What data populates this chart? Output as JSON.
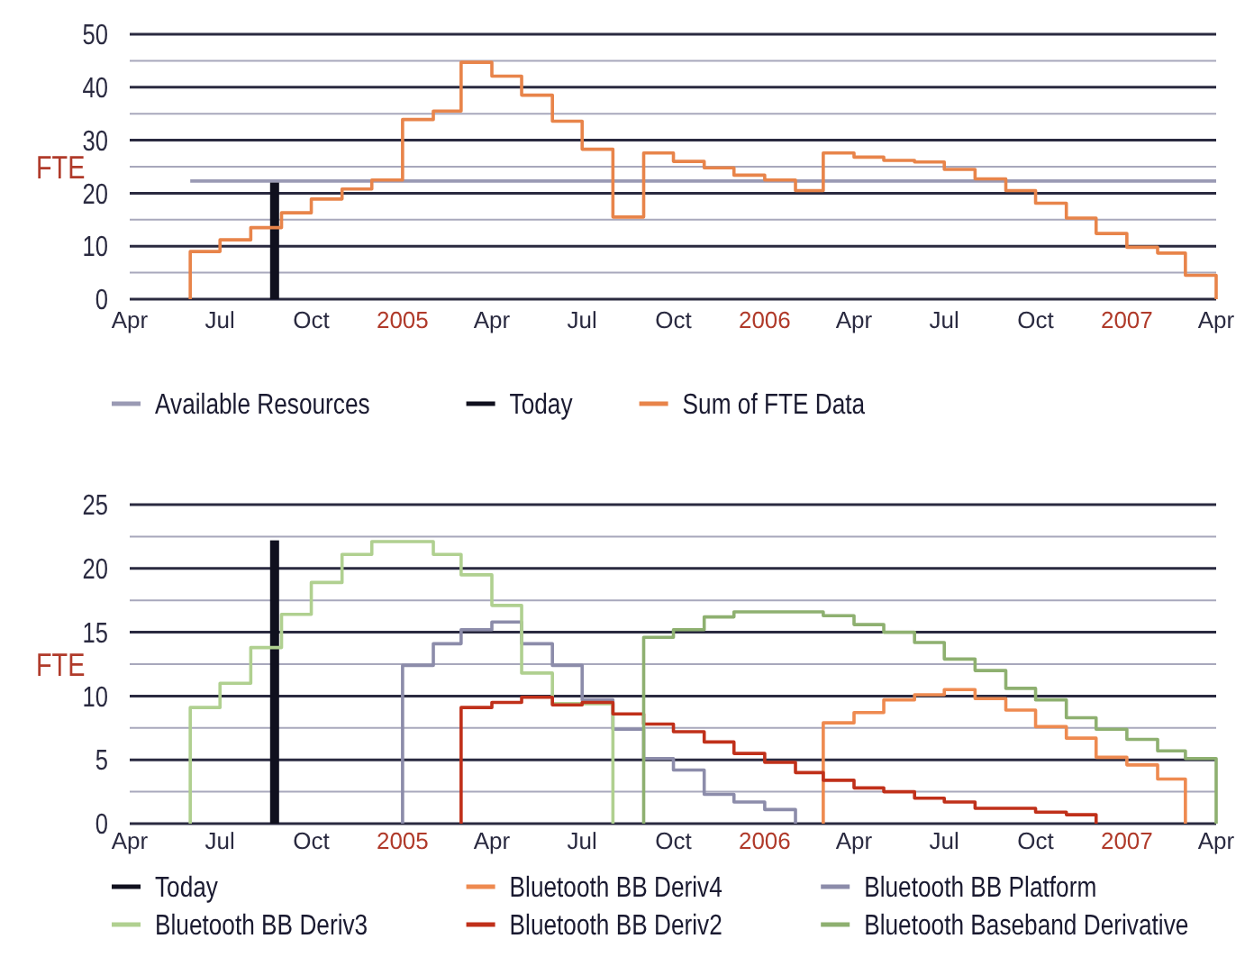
{
  "chart_data": [
    {
      "type": "step",
      "ylabel": "FTE",
      "xlim": [
        "2004-04",
        "2007-04"
      ],
      "xticks": [
        {
          "value": "2004-04",
          "label": "Apr"
        },
        {
          "value": "2004-07",
          "label": "Jul"
        },
        {
          "value": "2004-10",
          "label": "Oct"
        },
        {
          "value": "2005-01",
          "label": "2005"
        },
        {
          "value": "2005-04",
          "label": "Apr"
        },
        {
          "value": "2005-07",
          "label": "Jul"
        },
        {
          "value": "2005-10",
          "label": "Oct"
        },
        {
          "value": "2006-01",
          "label": "2006"
        },
        {
          "value": "2006-04",
          "label": "Apr"
        },
        {
          "value": "2006-07",
          "label": "Jul"
        },
        {
          "value": "2006-10",
          "label": "Oct"
        },
        {
          "value": "2007-01",
          "label": "2007"
        },
        {
          "value": "2007-04",
          "label": "Apr"
        }
      ],
      "ylim": [
        0,
        50
      ],
      "yticks": [
        0,
        {
          "value": 5,
          "label": null
        },
        10,
        {
          "value": 15,
          "label": null
        },
        20,
        {
          "value": 25,
          "label": null
        },
        30,
        {
          "value": 35,
          "label": null
        },
        40,
        {
          "value": 45,
          "label": null
        },
        50
      ],
      "grid": "y",
      "legend": "bottom",
      "series": [
        {
          "name": "Available Resources",
          "type": "line",
          "color": "#9a9ab4",
          "x": [
            "2004-06",
            "2007-04"
          ],
          "values": [
            22.3,
            22.3
          ]
        },
        {
          "name": "Today",
          "type": "bar",
          "color": "#10101e",
          "x": [
            "2004-08-25"
          ],
          "values": [
            22
          ]
        },
        {
          "name": "Sum of FTE Data",
          "color": "#e8844a",
          "x": [
            "2004-06",
            "2004-06",
            "2004-07",
            "2004-08",
            "2004-09",
            "2004-10",
            "2004-11",
            "2004-12",
            "2005-01",
            "2005-02",
            "2005-03",
            "2005-04",
            "2005-05",
            "2005-06",
            "2005-07",
            "2005-08",
            "2005-09",
            "2005-10",
            "2005-11",
            "2005-12",
            "2006-01",
            "2006-02",
            "2006-03",
            "2006-04",
            "2006-05",
            "2006-06",
            "2006-07",
            "2006-08",
            "2006-09",
            "2006-10",
            "2006-11",
            "2006-12",
            "2007-01",
            "2007-02",
            "2007-03",
            "2007-04"
          ],
          "values": [
            0,
            9,
            11.2,
            13.5,
            16.3,
            18.9,
            20.8,
            22.5,
            33.9,
            35.5,
            44.7,
            42.1,
            38.5,
            33.6,
            28.3,
            15.5,
            27.6,
            26,
            24.8,
            23.4,
            22.5,
            20.5,
            27.6,
            26.8,
            26.2,
            25.9,
            24.5,
            22.7,
            20.5,
            18.1,
            15.3,
            12.4,
            9.8,
            8.7,
            4.5,
            0
          ]
        }
      ]
    },
    {
      "type": "step",
      "ylabel": "FTE",
      "xlim": [
        "2004-04",
        "2007-04"
      ],
      "xticks": [
        {
          "value": "2004-04",
          "label": "Apr"
        },
        {
          "value": "2004-07",
          "label": "Jul"
        },
        {
          "value": "2004-10",
          "label": "Oct"
        },
        {
          "value": "2005-01",
          "label": "2005"
        },
        {
          "value": "2005-04",
          "label": "Apr"
        },
        {
          "value": "2005-07",
          "label": "Jul"
        },
        {
          "value": "2005-10",
          "label": "Oct"
        },
        {
          "value": "2006-01",
          "label": "2006"
        },
        {
          "value": "2006-04",
          "label": "Apr"
        },
        {
          "value": "2006-07",
          "label": "Jul"
        },
        {
          "value": "2006-10",
          "label": "Oct"
        },
        {
          "value": "2007-01",
          "label": "2007"
        },
        {
          "value": "2007-04",
          "label": "Apr"
        }
      ],
      "ylim": [
        0,
        25
      ],
      "yticks": [
        0,
        {
          "value": 2.5,
          "label": null
        },
        5,
        {
          "value": 7.5,
          "label": null
        },
        10,
        {
          "value": 12.5,
          "label": null
        },
        15,
        {
          "value": 17.5,
          "label": null
        },
        20,
        {
          "value": 22.5,
          "label": null
        },
        25
      ],
      "grid": "y",
      "legend": "bottom",
      "series": [
        {
          "name": "Today",
          "type": "bar",
          "color": "#10101e",
          "x": [
            "2004-08-25"
          ],
          "values": [
            22.2
          ]
        },
        {
          "name": "Bluetooth BB Deriv4",
          "color": "#ee8a50",
          "x": [
            "2006-03",
            "2006-03",
            "2006-04",
            "2006-05",
            "2006-06",
            "2006-07",
            "2006-08",
            "2006-09",
            "2006-10",
            "2006-11",
            "2006-12",
            "2007-01",
            "2007-02",
            "2007-03"
          ],
          "values": [
            0,
            7.9,
            8.7,
            9.7,
            10.1,
            10.5,
            9.8,
            8.9,
            7.6,
            6.7,
            5.2,
            4.6,
            3.5,
            0
          ]
        },
        {
          "name": "Bluetooth BB Platform",
          "color": "#8c8caa",
          "x": [
            "2005-01",
            "2005-01",
            "2005-02",
            "2005-03",
            "2005-04",
            "2005-05",
            "2005-06",
            "2005-07",
            "2005-08",
            "2005-09",
            "2005-10",
            "2005-11",
            "2005-12",
            "2006-01",
            "2006-02"
          ],
          "values": [
            0,
            12.4,
            14.1,
            15.2,
            15.8,
            14.1,
            12.4,
            9.7,
            7.4,
            5.1,
            4.2,
            2.3,
            1.7,
            1.1,
            0
          ]
        },
        {
          "name": "Bluetooth BB Deriv3",
          "color": "#b0d090",
          "x": [
            "2004-06",
            "2004-06",
            "2004-07",
            "2004-08",
            "2004-09",
            "2004-10",
            "2004-11",
            "2004-12",
            "2005-01",
            "2005-02",
            "2005-03",
            "2005-04",
            "2005-05",
            "2005-06",
            "2005-07",
            "2005-08"
          ],
          "values": [
            0,
            9.1,
            11,
            13.8,
            16.4,
            18.9,
            21.1,
            22.1,
            22.1,
            21.1,
            19.5,
            17.1,
            11.8,
            9.4,
            9.4,
            0
          ]
        },
        {
          "name": "Bluetooth BB Deriv2",
          "color": "#c0301a",
          "x": [
            "2005-03",
            "2005-03",
            "2005-04",
            "2005-05",
            "2005-06",
            "2005-07",
            "2005-08",
            "2005-09",
            "2005-10",
            "2005-11",
            "2005-12",
            "2006-01",
            "2006-02",
            "2006-03",
            "2006-04",
            "2006-05",
            "2006-06",
            "2006-07",
            "2006-08",
            "2006-09",
            "2006-10",
            "2006-11",
            "2006-12"
          ],
          "values": [
            0,
            9.1,
            9.5,
            9.9,
            9.3,
            9.5,
            8.6,
            7.8,
            7.2,
            6.4,
            5.5,
            4.8,
            4,
            3.4,
            2.8,
            2.5,
            2,
            1.7,
            1.2,
            1.2,
            0.9,
            0.7,
            0
          ]
        },
        {
          "name": "Bluetooth Baseband Derivative",
          "color": "#8eb070",
          "x": [
            "2005-09",
            "2005-09",
            "2005-10",
            "2005-11",
            "2005-12",
            "2006-01",
            "2006-02",
            "2006-03",
            "2006-04",
            "2006-05",
            "2006-06",
            "2006-07",
            "2006-08",
            "2006-09",
            "2006-10",
            "2006-11",
            "2006-12",
            "2007-01",
            "2007-02",
            "2007-03",
            "2007-04"
          ],
          "values": [
            0,
            14.6,
            15.2,
            16.2,
            16.6,
            16.6,
            16.6,
            16.3,
            15.6,
            15,
            14.2,
            12.9,
            12,
            10.6,
            9.7,
            8.3,
            7.4,
            6.6,
            5.7,
            5.1,
            0
          ]
        }
      ]
    }
  ]
}
